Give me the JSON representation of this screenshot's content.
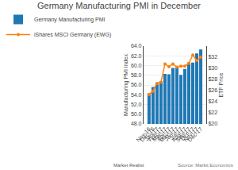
{
  "chart_data": {
    "type": "bar",
    "title": "Germany Manufacturing PMI in December",
    "categories": [
      "Nov-16",
      "Dec-16",
      "Jan-17",
      "Feb-17",
      "Mar-17",
      "Apr-17",
      "May-17",
      "Jun-17",
      "Jul-17",
      "Aug-17",
      "Sep-17",
      "Oct-17",
      "Nov-17",
      "Dec-17"
    ],
    "series": [
      {
        "name": "Germany Manufacturing PMI",
        "type": "bar",
        "values": [
          54.3,
          55.6,
          56.5,
          56.8,
          58.3,
          58.2,
          59.5,
          59.6,
          58.1,
          59.3,
          60.6,
          60.6,
          62.5,
          63.3
        ]
      },
      {
        "name": "iShares MSCI Germany (EWG)",
        "type": "line",
        "axis": "y2",
        "marker": "circle",
        "values": [
          25.3,
          25.9,
          27.3,
          27.5,
          30.8,
          30.3,
          30.8,
          30.2,
          30.4,
          30.4,
          30.9,
          32.4,
          31.4,
          32.0
        ]
      }
    ],
    "ylabel": "Manufacturing PMI Index",
    "y2label": "ETF Price",
    "ylim": [
      48.0,
      64.0
    ],
    "yticks": [
      {
        "value": 48.0,
        "label": "48.0"
      },
      {
        "value": 50.0,
        "label": "50.0"
      },
      {
        "value": 52.0,
        "label": "52.0"
      },
      {
        "value": 54.0,
        "label": "54.0"
      },
      {
        "value": 56.0,
        "label": "56.0"
      },
      {
        "value": 58.0,
        "label": "58.0"
      },
      {
        "value": 60.0,
        "label": "60.0"
      },
      {
        "value": 62.0,
        "label": "62.0"
      },
      {
        "value": 64.0,
        "label": "64.0"
      }
    ],
    "y2lim": [
      20.0,
      34.0
    ],
    "y2ticks": [
      {
        "value": 20,
        "label": "$20"
      },
      {
        "value": 22,
        "label": "$22"
      },
      {
        "value": 24,
        "label": "$24"
      },
      {
        "value": 26,
        "label": "$26"
      },
      {
        "value": 28,
        "label": "$28"
      },
      {
        "value": 30,
        "label": "$30"
      },
      {
        "value": 32,
        "label": "$32"
      }
    ],
    "grid": true,
    "legend": "top",
    "annotations": [
      "Market Realist",
      "Source: Markit Economics"
    ]
  }
}
